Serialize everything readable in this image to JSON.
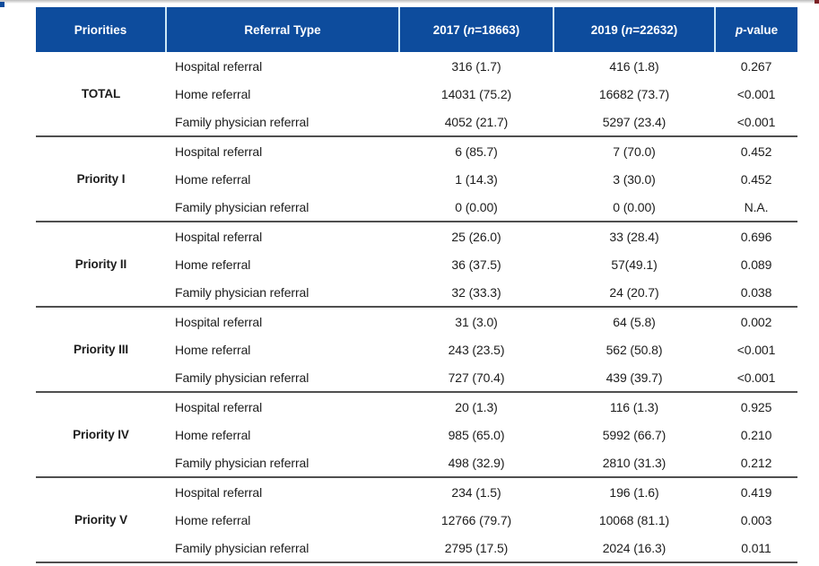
{
  "colors": {
    "header_bg": "#0d4c9d",
    "header_text": "#ffffff",
    "header_divider": "#cde8f6",
    "rule": "#4f4f4f",
    "body_text": "#1c1c1c",
    "corner_mark_left": "#0d4c9d",
    "corner_mark_right": "#7b2125"
  },
  "table": {
    "headers": [
      {
        "pre": "Priorities",
        "italic": "",
        "post": ""
      },
      {
        "pre": "Referral Type",
        "italic": "",
        "post": ""
      },
      {
        "pre": "2017 (",
        "italic": "n",
        "post": "=18663)"
      },
      {
        "pre": "2019 (",
        "italic": "n",
        "post": "=22632)"
      },
      {
        "pre": "",
        "italic": "p",
        "post": "-value"
      }
    ],
    "groups": [
      {
        "label": "TOTAL",
        "rows": [
          {
            "referral_type": "Hospital referral",
            "y2017": "316 (1.7)",
            "y2019": "416 (1.8)",
            "p_value": "0.267"
          },
          {
            "referral_type": "Home referral",
            "y2017": "14031 (75.2)",
            "y2019": "16682 (73.7)",
            "p_value": "<0.001"
          },
          {
            "referral_type": "Family physician referral",
            "y2017": "4052 (21.7)",
            "y2019": "5297 (23.4)",
            "p_value": "<0.001"
          }
        ]
      },
      {
        "label": "Priority I",
        "rows": [
          {
            "referral_type": "Hospital referral",
            "y2017": "6 (85.7)",
            "y2019": "7 (70.0)",
            "p_value": "0.452"
          },
          {
            "referral_type": "Home referral",
            "y2017": "1 (14.3)",
            "y2019": "3 (30.0)",
            "p_value": "0.452"
          },
          {
            "referral_type": "Family physician referral",
            "y2017": "0 (0.00)",
            "y2019": "0 (0.00)",
            "p_value": "N.A."
          }
        ]
      },
      {
        "label": "Priority II",
        "rows": [
          {
            "referral_type": "Hospital referral",
            "y2017": "25 (26.0)",
            "y2019": "33 (28.4)",
            "p_value": "0.696"
          },
          {
            "referral_type": "Home referral",
            "y2017": "36 (37.5)",
            "y2019": "57(49.1)",
            "p_value": "0.089"
          },
          {
            "referral_type": "Family physician referral",
            "y2017": "32 (33.3)",
            "y2019": "24 (20.7)",
            "p_value": "0.038"
          }
        ]
      },
      {
        "label": "Priority III",
        "rows": [
          {
            "referral_type": "Hospital referral",
            "y2017": "31 (3.0)",
            "y2019": "64 (5.8)",
            "p_value": "0.002"
          },
          {
            "referral_type": "Home referral",
            "y2017": "243 (23.5)",
            "y2019": "562 (50.8)",
            "p_value": "<0.001"
          },
          {
            "referral_type": "Family physician referral",
            "y2017": "727 (70.4)",
            "y2019": "439 (39.7)",
            "p_value": "<0.001"
          }
        ]
      },
      {
        "label": "Priority IV",
        "rows": [
          {
            "referral_type": "Hospital referral",
            "y2017": "20 (1.3)",
            "y2019": "116 (1.3)",
            "p_value": "0.925"
          },
          {
            "referral_type": "Home referral",
            "y2017": "985 (65.0)",
            "y2019": "5992 (66.7)",
            "p_value": "0.210"
          },
          {
            "referral_type": "Family physician referral",
            "y2017": "498 (32.9)",
            "y2019": "2810 (31.3)",
            "p_value": "0.212"
          }
        ]
      },
      {
        "label": "Priority V",
        "rows": [
          {
            "referral_type": "Hospital referral",
            "y2017": "234 (1.5)",
            "y2019": "196 (1.6)",
            "p_value": "0.419"
          },
          {
            "referral_type": "Home referral",
            "y2017": "12766 (79.7)",
            "y2019": "10068 (81.1)",
            "p_value": "0.003"
          },
          {
            "referral_type": "Family physician referral",
            "y2017": "2795 (17.5)",
            "y2019": "2024 (16.3)",
            "p_value": "0.011"
          }
        ]
      }
    ]
  }
}
